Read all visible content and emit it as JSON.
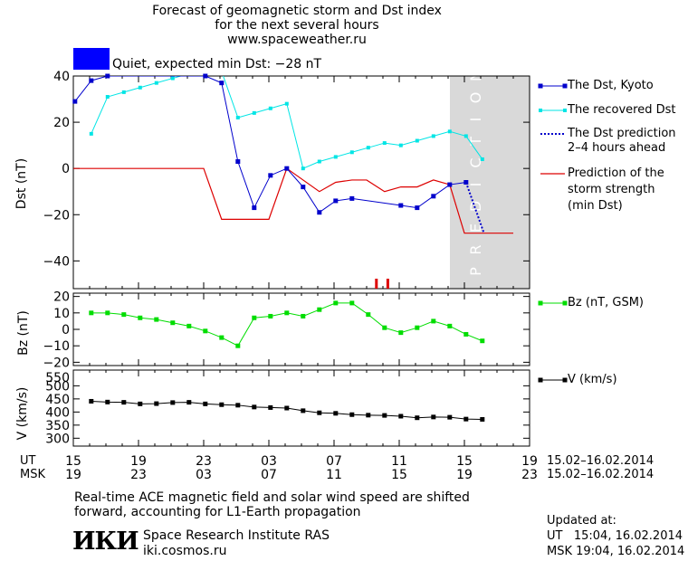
{
  "header": {
    "title": [
      "Forecast of geomagnetic storm and Dst index",
      "for the next several hours",
      "www.spaceweather.ru"
    ],
    "status_label": "Quiet, expected min Dst: −28 nT",
    "status_color": "#0000ff"
  },
  "legend": {
    "dst_kyoto": "The Dst, Kyoto",
    "dst_recovered": "The recovered Dst",
    "dst_prediction": [
      "The Dst prediction",
      "2–4 hours ahead"
    ],
    "storm_strength": [
      "Prediction of the",
      "storm strength",
      "(min Dst)"
    ],
    "bz": "Bz (nT, GSM)",
    "v": "V (km/s)"
  },
  "prediction_label": "PREDICTION",
  "time_axis": {
    "ut_label": "UT",
    "msk_label": "MSK",
    "ut_ticks": [
      "15",
      "19",
      "23",
      "03",
      "07",
      "11",
      "15",
      "19"
    ],
    "msk_ticks": [
      "19",
      "23",
      "03",
      "07",
      "11",
      "15",
      "19",
      "23"
    ],
    "extra_ticks": [
      "",
      "",
      "",
      "",
      "",
      "",
      "",
      ""
    ],
    "date_range_ut": "15.02–16.02.2014",
    "date_range_msk": "15.02–16.02.2014"
  },
  "footer": {
    "note": [
      "Real-time ACE magnetic field and solar wind speed are shifted",
      "forward, accounting for L1-Earth propagation"
    ],
    "logo": "ИКИ",
    "institute": "Space Research Institute RAS",
    "site": "iki.cosmos.ru",
    "updated_label": "Updated at:",
    "updated_ut": "UT   15:04, 16.02.2014",
    "updated_msk": "MSK 19:04, 16.02.2014"
  },
  "colors": {
    "dst_kyoto": "#0000cc",
    "dst_recovered": "#00e5e5",
    "storm_strength": "#dd0000",
    "bz": "#00dd00",
    "v": "#000000",
    "prediction_band": "#d9d9d9"
  },
  "chart_data": [
    {
      "type": "line",
      "ylabel": "Dst (nT)",
      "x_range_hours": [
        15,
        39
      ],
      "ylim": [
        -52,
        40
      ],
      "yticks": [
        40,
        20,
        0,
        -20,
        -40
      ],
      "prediction_band_hours": [
        38,
        40
      ],
      "series": [
        {
          "name": "The Dst, Kyoto",
          "color": "#0000cc",
          "points": [
            [
              15.1,
              29
            ],
            [
              16.1,
              38
            ],
            [
              17.1,
              40
            ],
            [
              23.1,
              40
            ],
            [
              24.1,
              37
            ],
            [
              25.1,
              3
            ],
            [
              26.1,
              -17
            ],
            [
              27.1,
              -3
            ],
            [
              28.1,
              0
            ],
            [
              29.1,
              -8
            ],
            [
              30.1,
              -19
            ],
            [
              31.1,
              -14
            ],
            [
              32.1,
              -13
            ],
            [
              35.1,
              -16
            ],
            [
              36.1,
              -17
            ],
            [
              37.1,
              -12
            ],
            [
              38.1,
              -7
            ],
            [
              39.1,
              -6
            ]
          ]
        },
        {
          "name": "The recovered Dst",
          "color": "#00e5e5",
          "points": [
            [
              16.1,
              15
            ],
            [
              17.1,
              31
            ],
            [
              18.1,
              33
            ],
            [
              19.1,
              35
            ],
            [
              20.1,
              37
            ],
            [
              21.1,
              39
            ],
            [
              22.1,
              41
            ],
            [
              23.1,
              41
            ],
            [
              24.1,
              42
            ],
            [
              25.1,
              22
            ],
            [
              26.1,
              24
            ],
            [
              27.1,
              26
            ],
            [
              28.1,
              28
            ],
            [
              29.1,
              0
            ],
            [
              30.1,
              3
            ],
            [
              31.1,
              5
            ],
            [
              32.1,
              7
            ],
            [
              33.1,
              9
            ],
            [
              34.1,
              11
            ],
            [
              35.1,
              10
            ],
            [
              36.1,
              12
            ],
            [
              37.1,
              14
            ],
            [
              38.1,
              16
            ],
            [
              39.1,
              14
            ],
            [
              40.1,
              4
            ]
          ]
        },
        {
          "name": "The Dst prediction 2–4 hours ahead",
          "color": "#0000cc",
          "points": [
            [
              39.1,
              -6
            ],
            [
              40.2,
              -28
            ]
          ]
        },
        {
          "name": "Prediction of the storm strength (min Dst)",
          "color": "#dd0000",
          "points": [
            [
              15,
              0
            ],
            [
              23,
              0
            ],
            [
              24.1,
              -22
            ],
            [
              27,
              -22
            ],
            [
              28.1,
              0
            ],
            [
              29.1,
              -5
            ],
            [
              30.1,
              -10
            ],
            [
              31.1,
              -6
            ],
            [
              32.1,
              -5
            ],
            [
              33,
              -5
            ],
            [
              34.1,
              -10
            ],
            [
              35.1,
              -8
            ],
            [
              36.1,
              -8
            ],
            [
              37.1,
              -5
            ],
            [
              38.1,
              -7
            ],
            [
              39,
              -28
            ],
            [
              42,
              -28
            ]
          ]
        }
      ],
      "markers_hours": [
        33.6,
        34.3
      ]
    },
    {
      "type": "line",
      "ylabel": "Bz (nT)",
      "ylim": [
        -22,
        22
      ],
      "yticks": [
        20,
        10,
        0,
        -10,
        -20
      ],
      "series": [
        {
          "name": "Bz (nT, GSM)",
          "color": "#00dd00",
          "points": [
            [
              16.1,
              10
            ],
            [
              17.1,
              10
            ],
            [
              18.1,
              9
            ],
            [
              19.1,
              7
            ],
            [
              20.1,
              6
            ],
            [
              21.1,
              4
            ],
            [
              22.1,
              2
            ],
            [
              23.1,
              -1
            ],
            [
              24.1,
              -5
            ],
            [
              25.1,
              -10
            ],
            [
              26.1,
              7
            ],
            [
              27.1,
              8
            ],
            [
              28.1,
              10
            ],
            [
              29.1,
              8
            ],
            [
              30.1,
              12
            ],
            [
              31.1,
              16
            ],
            [
              32.1,
              16
            ],
            [
              33.1,
              9
            ],
            [
              34.1,
              1
            ],
            [
              35.1,
              -2
            ],
            [
              36.1,
              1
            ],
            [
              37.1,
              5
            ],
            [
              38.1,
              2
            ],
            [
              39.1,
              -3
            ],
            [
              40.1,
              -7
            ]
          ]
        }
      ]
    },
    {
      "type": "line",
      "ylabel": "V (km/s)",
      "ylim": [
        270,
        560
      ],
      "yticks": [
        500,
        450,
        400,
        350,
        300
      ],
      "ytick_labels": [
        "500",
        "450",
        "400",
        "350",
        "300"
      ],
      "ytick_labels_top": [
        "550"
      ],
      "series": [
        {
          "name": "V (km/s)",
          "color": "#000000",
          "points": [
            [
              16.1,
              441
            ],
            [
              17.1,
              438
            ],
            [
              18.1,
              437
            ],
            [
              19.1,
              431
            ],
            [
              20.1,
              432
            ],
            [
              21.1,
              436
            ],
            [
              22.1,
              437
            ],
            [
              23.1,
              431
            ],
            [
              24.1,
              428
            ],
            [
              25.1,
              426
            ],
            [
              26.1,
              419
            ],
            [
              27.1,
              417
            ],
            [
              28.1,
              415
            ],
            [
              29.1,
              405
            ],
            [
              30.1,
              397
            ],
            [
              31.1,
              395
            ],
            [
              32.1,
              390
            ],
            [
              33.1,
              388
            ],
            [
              34.1,
              387
            ],
            [
              35.1,
              384
            ],
            [
              36.1,
              378
            ],
            [
              37.1,
              381
            ],
            [
              38.1,
              380
            ],
            [
              39.1,
              373
            ],
            [
              40.1,
              372
            ]
          ]
        }
      ]
    }
  ]
}
